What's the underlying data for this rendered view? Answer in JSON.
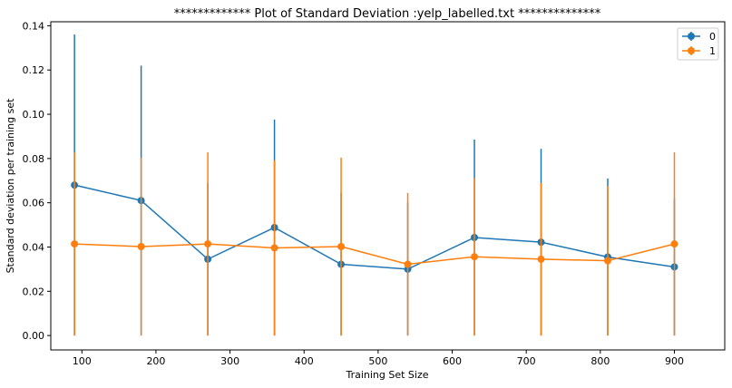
{
  "chart_data": {
    "type": "line",
    "title": "************* Plot of Standard Deviation :yelp_labelled.txt **************",
    "xlabel": "Training Set Size",
    "ylabel": "Standard deviation per training set",
    "xlim": [
      58,
      968
    ],
    "ylim": [
      -0.0065,
      0.1418
    ],
    "xticks": [
      100,
      200,
      300,
      400,
      500,
      600,
      700,
      800,
      900
    ],
    "xtick_labels": [
      "100",
      "200",
      "300",
      "400",
      "500",
      "600",
      "700",
      "800",
      "900"
    ],
    "yticks": [
      0.0,
      0.02,
      0.04,
      0.06,
      0.08,
      0.1,
      0.12,
      0.14
    ],
    "ytick_labels": [
      "0.00",
      "0.02",
      "0.04",
      "0.06",
      "0.08",
      "0.10",
      "0.12",
      "0.14"
    ],
    "grid": false,
    "legend_position": "top-right",
    "x": [
      90,
      180,
      270,
      360,
      450,
      540,
      630,
      720,
      810,
      900
    ],
    "series": [
      {
        "name": "0",
        "color": "#1f77b4",
        "values": [
          0.068,
          0.061,
          0.0345,
          0.0488,
          0.0322,
          0.03,
          0.0443,
          0.0422,
          0.0355,
          0.031
        ],
        "yerr": [
          0.068,
          0.061,
          0.0345,
          0.0488,
          0.0322,
          0.03,
          0.0443,
          0.0422,
          0.0355,
          0.031
        ]
      },
      {
        "name": "1",
        "color": "#ff7f0e",
        "values": [
          0.0414,
          0.0402,
          0.0414,
          0.0396,
          0.0402,
          0.0322,
          0.0356,
          0.0345,
          0.0338,
          0.0414
        ],
        "yerr": [
          0.0414,
          0.0402,
          0.0414,
          0.0396,
          0.0402,
          0.0322,
          0.0356,
          0.0345,
          0.0338,
          0.0414
        ]
      }
    ]
  }
}
